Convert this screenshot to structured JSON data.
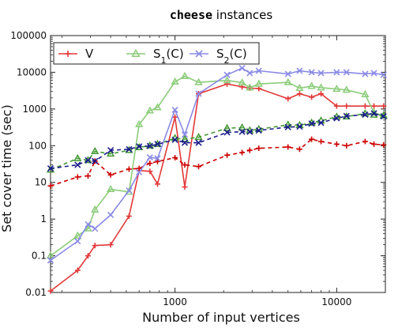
{
  "chart_data": {
    "type": "line",
    "title": {
      "code": "cheese",
      "rest": " instances"
    },
    "xlabel": "Number of input vertices",
    "ylabel": "Set cover time (sec)",
    "xscale": "log",
    "yscale": "log",
    "xlim": [
      170,
      20000
    ],
    "ylim": [
      0.01,
      100000
    ],
    "x_ticks": [
      1000,
      10000
    ],
    "x_tick_labels": [
      "1000",
      "10000"
    ],
    "y_ticks": [
      0.01,
      0.1,
      1,
      10,
      100,
      1000,
      10000,
      100000
    ],
    "y_tick_labels": [
      "0.01",
      "0.1",
      "1",
      "10",
      "100",
      "1000",
      "10000",
      "100000"
    ],
    "legend_position": "top",
    "legend": [
      {
        "text": "V",
        "sub": "",
        "suffix": ""
      },
      {
        "text": "S",
        "sub": "1",
        "suffix": "(C)"
      },
      {
        "text": "S",
        "sub": "2",
        "suffix": "(C)"
      }
    ],
    "series": [
      {
        "name": "V",
        "color": "#e23838",
        "marker": "plus",
        "line": "solid",
        "points": [
          [
            170,
            0.011
          ],
          [
            250,
            0.04
          ],
          [
            290,
            0.1
          ],
          [
            320,
            0.19
          ],
          [
            400,
            0.2
          ],
          [
            520,
            1.2
          ],
          [
            600,
            21
          ],
          [
            700,
            20
          ],
          [
            780,
            9
          ],
          [
            1000,
            600
          ],
          [
            1150,
            7.5
          ],
          [
            1400,
            2600
          ],
          [
            2100,
            4800
          ],
          [
            2600,
            4000
          ],
          [
            2900,
            3700
          ],
          [
            3300,
            3600
          ],
          [
            5000,
            1900
          ],
          [
            5900,
            2600
          ],
          [
            7000,
            2100
          ],
          [
            8000,
            2600
          ],
          [
            10000,
            1200
          ],
          [
            11500,
            1200
          ],
          [
            15000,
            1200
          ],
          [
            17000,
            1200
          ],
          [
            19500,
            1200
          ]
        ]
      },
      {
        "name": "V",
        "color": "#cc0000",
        "marker": "plus",
        "line": "dashed",
        "points": [
          [
            170,
            8
          ],
          [
            250,
            14
          ],
          [
            290,
            15
          ],
          [
            320,
            38
          ],
          [
            400,
            16
          ],
          [
            520,
            23
          ],
          [
            600,
            24
          ],
          [
            700,
            33
          ],
          [
            780,
            37
          ],
          [
            1000,
            47
          ],
          [
            1150,
            30
          ],
          [
            1400,
            27
          ],
          [
            2100,
            55
          ],
          [
            2600,
            65
          ],
          [
            2900,
            75
          ],
          [
            3300,
            85
          ],
          [
            5000,
            92
          ],
          [
            5900,
            80
          ],
          [
            7000,
            150
          ],
          [
            8000,
            130
          ],
          [
            10000,
            110
          ],
          [
            11500,
            100
          ],
          [
            15000,
            130
          ],
          [
            17000,
            110
          ],
          [
            19500,
            105
          ]
        ]
      },
      {
        "name": "S1(C)",
        "color": "#8ccc7a",
        "marker": "triangle",
        "line": "solid",
        "points": [
          [
            170,
            0.1
          ],
          [
            250,
            0.35
          ],
          [
            290,
            0.55
          ],
          [
            320,
            1.8
          ],
          [
            400,
            6.5
          ],
          [
            520,
            5.5
          ],
          [
            600,
            380
          ],
          [
            700,
            900
          ],
          [
            780,
            1100
          ],
          [
            1000,
            5500
          ],
          [
            1150,
            7800
          ],
          [
            1400,
            5300
          ],
          [
            2100,
            6000
          ],
          [
            2600,
            5200
          ],
          [
            2900,
            3800
          ],
          [
            3300,
            4800
          ],
          [
            5000,
            5300
          ],
          [
            5900,
            3700
          ],
          [
            7000,
            4200
          ],
          [
            8000,
            3800
          ],
          [
            10000,
            3500
          ],
          [
            11500,
            3300
          ],
          [
            15000,
            2500
          ],
          [
            17000,
            800
          ],
          [
            19500,
            650
          ]
        ]
      },
      {
        "name": "S1(C)",
        "color": "#449933",
        "marker": "triangle",
        "line": "dashed",
        "points": [
          [
            170,
            22
          ],
          [
            250,
            45
          ],
          [
            290,
            40
          ],
          [
            320,
            70
          ],
          [
            400,
            60
          ],
          [
            520,
            75
          ],
          [
            600,
            90
          ],
          [
            700,
            100
          ],
          [
            780,
            110
          ],
          [
            1000,
            160
          ],
          [
            1150,
            150
          ],
          [
            1400,
            170
          ],
          [
            2100,
            300
          ],
          [
            2600,
            310
          ],
          [
            2900,
            260
          ],
          [
            3300,
            280
          ],
          [
            5000,
            370
          ],
          [
            5900,
            360
          ],
          [
            7000,
            420
          ],
          [
            8000,
            480
          ],
          [
            10000,
            610
          ],
          [
            11500,
            620
          ],
          [
            15000,
            750
          ],
          [
            17000,
            690
          ],
          [
            19500,
            660
          ]
        ]
      },
      {
        "name": "S2(C)",
        "color": "#8a8ae6",
        "marker": "x",
        "line": "solid",
        "points": [
          [
            170,
            0.075
          ],
          [
            250,
            0.25
          ],
          [
            290,
            0.72
          ],
          [
            320,
            0.55
          ],
          [
            400,
            1.3
          ],
          [
            520,
            6
          ],
          [
            600,
            19
          ],
          [
            700,
            48
          ],
          [
            780,
            45
          ],
          [
            1000,
            950
          ],
          [
            1150,
            200
          ],
          [
            1400,
            2600
          ],
          [
            2100,
            8500
          ],
          [
            2600,
            13000
          ],
          [
            2900,
            9500
          ],
          [
            3300,
            11000
          ],
          [
            5000,
            9000
          ],
          [
            5900,
            11000
          ],
          [
            7000,
            10000
          ],
          [
            8000,
            9500
          ],
          [
            10000,
            10000
          ],
          [
            11500,
            10000
          ],
          [
            15000,
            9000
          ],
          [
            17000,
            9500
          ],
          [
            19500,
            8500
          ]
        ]
      },
      {
        "name": "S2(C)",
        "color": "#1a1a8c",
        "marker": "x",
        "line": "dashed",
        "points": [
          [
            170,
            24
          ],
          [
            250,
            30
          ],
          [
            290,
            40
          ],
          [
            320,
            38
          ],
          [
            400,
            75
          ],
          [
            520,
            80
          ],
          [
            600,
            95
          ],
          [
            700,
            98
          ],
          [
            780,
            110
          ],
          [
            1000,
            145
          ],
          [
            1150,
            120
          ],
          [
            1400,
            120
          ],
          [
            2100,
            230
          ],
          [
            2600,
            240
          ],
          [
            2900,
            240
          ],
          [
            3300,
            260
          ],
          [
            5000,
            320
          ],
          [
            5900,
            330
          ],
          [
            7000,
            400
          ],
          [
            8000,
            420
          ],
          [
            10000,
            560
          ],
          [
            11500,
            640
          ],
          [
            15000,
            700
          ],
          [
            17000,
            760
          ],
          [
            19500,
            630
          ]
        ]
      }
    ]
  }
}
